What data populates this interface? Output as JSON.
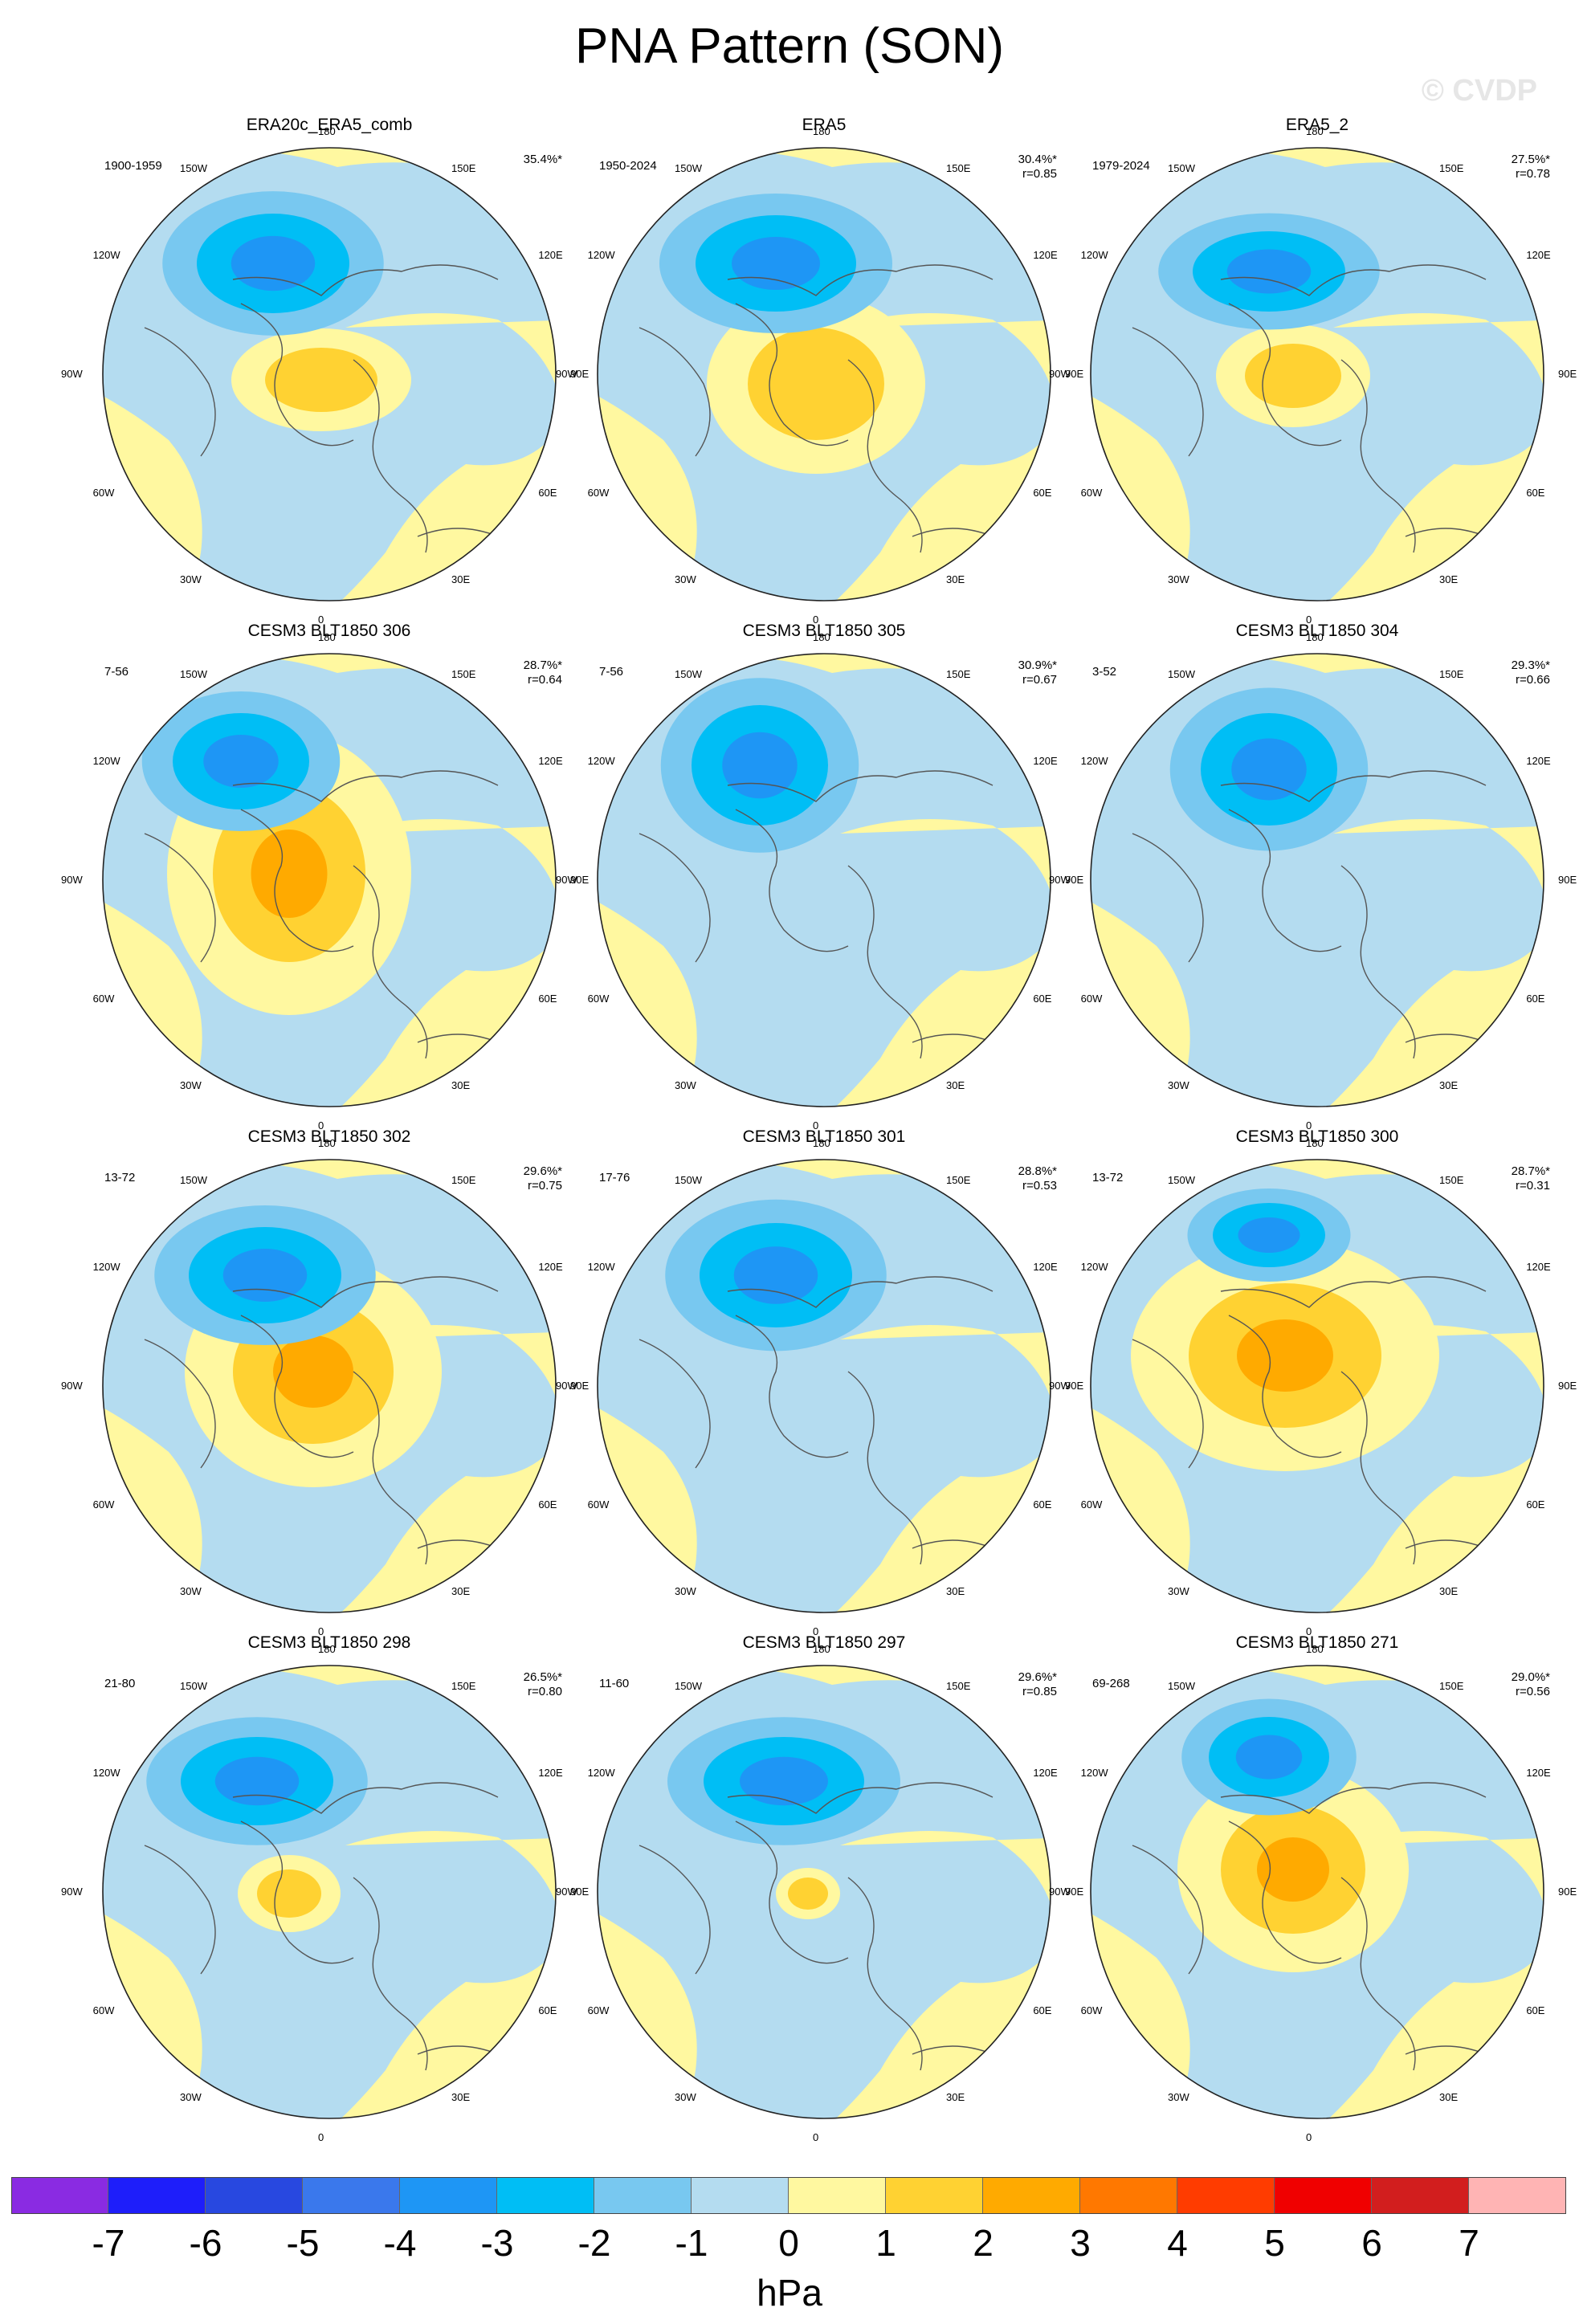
{
  "title": "PNA Pattern (SON)",
  "watermark": "© CVDP",
  "panels": [
    {
      "name": "ERA20c_ERA5_comb",
      "period": "1900-1959",
      "pct": "35.4%*",
      "r": ""
    },
    {
      "name": "ERA5",
      "period": "1950-2024",
      "pct": "30.4%*",
      "r": "r=0.85"
    },
    {
      "name": "ERA5_2",
      "period": "1979-2024",
      "pct": "27.5%*",
      "r": "r=0.78"
    },
    {
      "name": "CESM3 BLT1850 306",
      "period": "7-56",
      "pct": "28.7%*",
      "r": "r=0.64"
    },
    {
      "name": "CESM3 BLT1850 305",
      "period": "7-56",
      "pct": "30.9%*",
      "r": "r=0.67"
    },
    {
      "name": "CESM3 BLT1850 304",
      "period": "3-52",
      "pct": "29.3%*",
      "r": "r=0.66"
    },
    {
      "name": "CESM3 BLT1850 302",
      "period": "13-72",
      "pct": "29.6%*",
      "r": "r=0.75"
    },
    {
      "name": "CESM3 BLT1850 301",
      "period": "17-76",
      "pct": "28.8%*",
      "r": "r=0.53"
    },
    {
      "name": "CESM3 BLT1850 300",
      "period": "13-72",
      "pct": "28.7%*",
      "r": "r=0.31"
    },
    {
      "name": "CESM3 BLT1850 298",
      "period": "21-80",
      "pct": "26.5%*",
      "r": "r=0.80"
    },
    {
      "name": "CESM3 BLT1850 297",
      "period": "11-60",
      "pct": "29.6%*",
      "r": "r=0.85"
    },
    {
      "name": "CESM3 BLT1850 271",
      "period": "69-268",
      "pct": "29.0%*",
      "r": "r=0.56"
    }
  ],
  "lon_labels": [
    "180",
    "150E",
    "120E",
    "90E",
    "60E",
    "30E",
    "0",
    "30W",
    "60W",
    "90W",
    "120W",
    "150W"
  ],
  "colorbar": {
    "unit": "hPa",
    "ticks": [
      "-7",
      "-6",
      "-5",
      "-4",
      "-3",
      "-2",
      "-1",
      "0",
      "1",
      "2",
      "3",
      "4",
      "5",
      "6",
      "7"
    ],
    "colors": [
      "#8a2be2",
      "#1e1efa",
      "#2848e0",
      "#3a78ec",
      "#1e96f5",
      "#00bef5",
      "#78c8f0",
      "#b4dcf0",
      "#fff8a0",
      "#ffd232",
      "#ffaa00",
      "#ff7800",
      "#ff3c00",
      "#f00000",
      "#d21e1e",
      "#ffb4b4"
    ]
  }
}
